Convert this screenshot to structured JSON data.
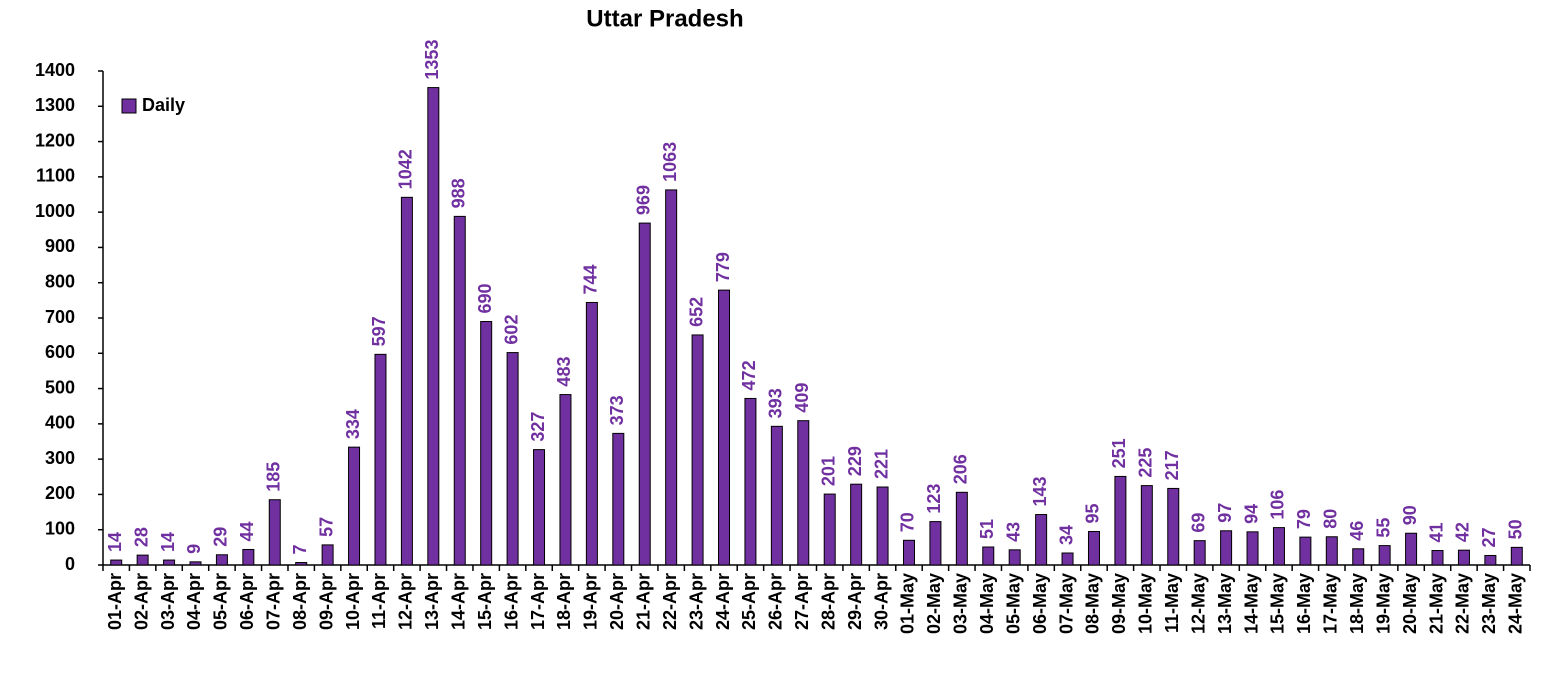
{
  "chart_data": {
    "type": "bar",
    "title": "Uttar Pradesh",
    "categories": [
      "01-Apr",
      "02-Apr",
      "03-Apr",
      "04-Apr",
      "05-Apr",
      "06-Apr",
      "07-Apr",
      "08-Apr",
      "09-Apr",
      "10-Apr",
      "11-Apr",
      "12-Apr",
      "13-Apr",
      "14-Apr",
      "15-Apr",
      "16-Apr",
      "17-Apr",
      "18-Apr",
      "19-Apr",
      "20-Apr",
      "21-Apr",
      "22-Apr",
      "23-Apr",
      "24-Apr",
      "25-Apr",
      "26-Apr",
      "27-Apr",
      "28-Apr",
      "29-Apr",
      "30-Apr",
      "01-May",
      "02-May",
      "03-May",
      "04-May",
      "05-May",
      "06-May",
      "07-May",
      "08-May",
      "09-May",
      "10-May",
      "11-May",
      "12-May",
      "13-May",
      "14-May",
      "15-May",
      "16-May",
      "17-May",
      "18-May",
      "19-May",
      "20-May",
      "21-May",
      "22-May",
      "23-May",
      "24-May"
    ],
    "series": [
      {
        "name": "Daily",
        "color": "#7030a0",
        "values": [
          14,
          28,
          14,
          9,
          29,
          44,
          185,
          7,
          57,
          334,
          597,
          1042,
          1353,
          988,
          690,
          602,
          327,
          483,
          744,
          373,
          969,
          1063,
          652,
          779,
          472,
          393,
          409,
          201,
          229,
          221,
          70,
          123,
          206,
          51,
          43,
          143,
          34,
          95,
          251,
          225,
          217,
          69,
          97,
          94,
          106,
          79,
          80,
          46,
          55,
          90,
          41,
          42,
          27,
          50
        ]
      }
    ],
    "ylim": [
      0,
      1400
    ],
    "yticks": [
      0,
      100,
      200,
      300,
      400,
      500,
      600,
      700,
      800,
      900,
      1000,
      1100,
      1200,
      1300,
      1400
    ],
    "legend": "upper left"
  }
}
